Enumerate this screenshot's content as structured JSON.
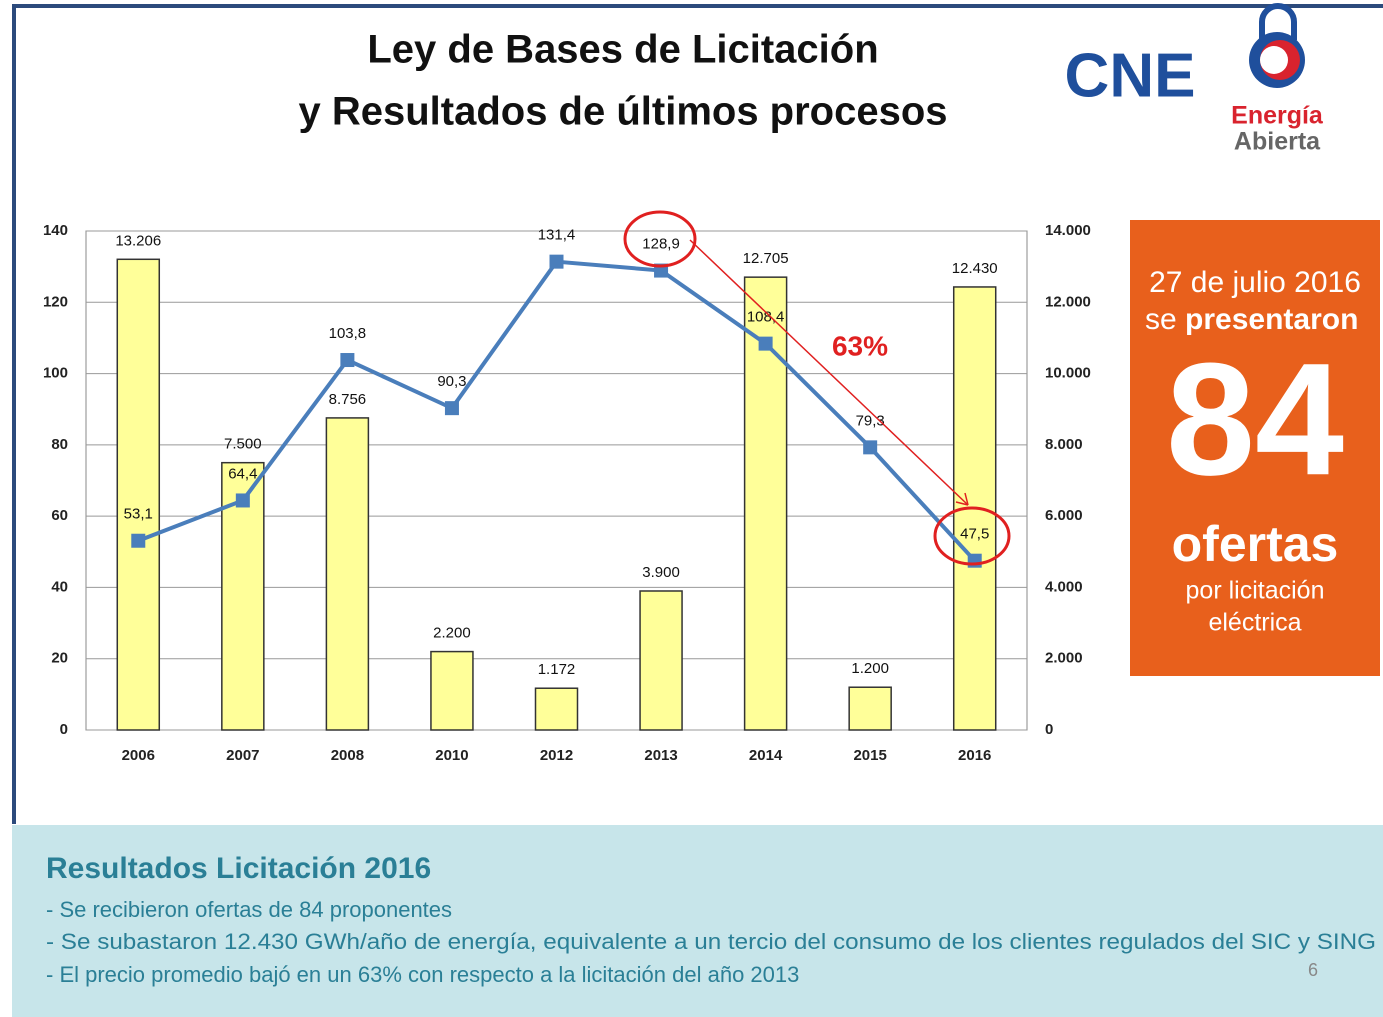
{
  "header": {
    "title_lines": [
      "Ley de Bases de Licitación",
      "y Resultados de últimos procesos"
    ],
    "logo_cne": "CNE",
    "logo_energia": "Energía",
    "logo_abierta": "Abierta"
  },
  "chart_data": {
    "type": "bar",
    "categories": [
      "2006",
      "2007",
      "2008",
      "2010",
      "2012",
      "2013",
      "2014",
      "2015",
      "2016"
    ],
    "series": [
      {
        "type": "bar",
        "axis": "y2",
        "color": "#ffff99",
        "values": [
          13206,
          7500,
          8756,
          2200,
          1172,
          3900,
          12705,
          1200,
          12430
        ],
        "value_labels": [
          "13.206",
          "7.500",
          "8.756",
          "2.200",
          "1.172",
          "3.900",
          "12.705",
          "1.200",
          "12.430"
        ]
      },
      {
        "type": "line",
        "color": "#4a7ebb",
        "values": [
          53.1,
          64.4,
          103.8,
          90.3,
          131.4,
          128.9,
          108.4,
          79.3,
          47.5
        ],
        "value_labels": [
          "53,1",
          "64,4",
          "103,8",
          "90,3",
          "131,4",
          "128,9",
          "108,4",
          "79,3",
          "47,5"
        ]
      }
    ],
    "ylim": [
      0,
      140
    ],
    "yticks": [
      0,
      20,
      40,
      60,
      80,
      100,
      120,
      140
    ],
    "y2lim": [
      0,
      14000
    ],
    "y2ticks": [
      0,
      {
        "value": 2000,
        "label": "2.000"
      },
      {
        "value": 4000,
        "label": "4.000"
      },
      {
        "value": 6000,
        "label": "6.000"
      },
      {
        "value": 8000,
        "label": "8.000"
      },
      {
        "value": 10000,
        "label": "10.000"
      },
      {
        "value": 12000,
        "label": "12.000"
      },
      {
        "value": 14000,
        "label": "14.000"
      }
    ],
    "grid": true,
    "annotation": "63%"
  },
  "callout": {
    "date": "27 de julio 2016",
    "se": "se",
    "presentaron": "presentaron",
    "number": "84",
    "word": "ofertas",
    "line1": "por licitación",
    "line2": "eléctrica"
  },
  "results": {
    "title": "Resultados Licitación 2016",
    "items": [
      "- Se recibieron ofertas de 84 proponentes",
      "- Se subastaron 12.430 GWh/año de energía, equivalente a un tercio del consumo de los clientes regulados del SIC y SING",
      "- El precio promedio bajó en un 63% con respecto a la licitación del año 2013"
    ],
    "page": "6"
  }
}
